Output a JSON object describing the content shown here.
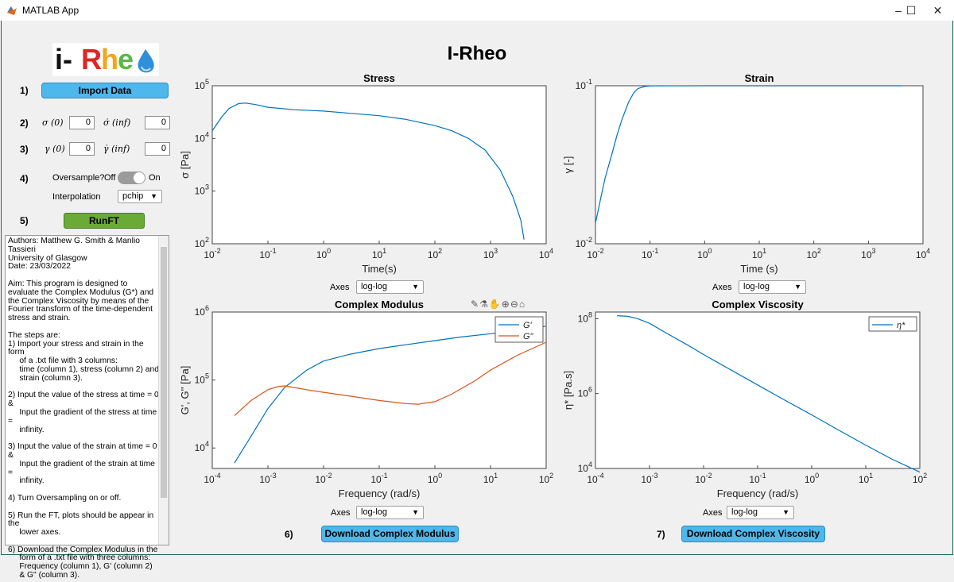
{
  "window": {
    "title": "MATLAB App",
    "controls": {
      "minimize": "–",
      "maximize": "☐",
      "close": "✕"
    }
  },
  "app": {
    "title": "I-Rheo",
    "logo_text": "i-Rheo"
  },
  "steps": {
    "s1": "1)",
    "s2": "2)",
    "s3": "3)",
    "s4": "4)",
    "s5": "5)",
    "s6": "6)",
    "s7": "7)"
  },
  "controls": {
    "import_label": "Import Data",
    "sigma0_label": "σ (0)",
    "sigma0_value": "0",
    "sigmadot_label": "σ̇ (inf)",
    "sigmadot_value": "0",
    "gamma0_label": "γ (0)",
    "gamma0_value": "0",
    "gammadot_label": "γ̇ (inf)",
    "gammadot_value": "0",
    "oversample_label": "Oversample?",
    "off_label": "Off",
    "on_label": "On",
    "interp_label": "Interpolation",
    "interp_value": "pchip",
    "runft_label": "RunFT",
    "download_modulus_label": "Download Complex Modulus",
    "download_viscosity_label": "Download Complex Viscosity",
    "axes_label": "Axes",
    "axes_options": [
      "log-log",
      "log-log",
      "log-log",
      "log-log"
    ]
  },
  "about_text": "Authors: Matthew G. Smith & Manlio Tassieri\nUniversity of Glasgow\nDate: 23/03/2022\n\nAim: This program is designed to evaluate the Complex Modulus (G*) and the Complex Viscosity by means of the Fourier transform of the time-dependent stress and strain.\n\nThe steps are:\n1) Import your stress and strain in the form\n     of a .txt file with 3 columns:\n     time (column 1), stress (column 2) and\n     strain (column 3).\n\n2) Input the value of the stress at time = 0 &\n     Input the gradient of the stress at time =\n     infinity.\n\n3) Input the value of the strain at time = 0 &\n     Input the gradient of the strain at time =\n     infinity.\n\n4) Turn Oversampling on or off.\n\n5) Run the FT, plots should be appear in the\n     lower axes.\n\n6) Download the Complex Modulus in the\n     form of a .txt file with three columns:\n     Frequency (column 1), G' (column 2)\n     & G\" (column 3).",
  "chart_data": [
    {
      "type": "line",
      "title": "Stress",
      "xlabel": "Time(s)",
      "ylabel": "σ [Pa]",
      "xscale": "log",
      "yscale": "log",
      "xlim": [
        0.01,
        10000
      ],
      "ylim": [
        100,
        100000
      ],
      "xticks": [
        "10^-2",
        "10^-1",
        "10^0",
        "10^1",
        "10^2",
        "10^3",
        "10^4"
      ],
      "yticks": [
        "10^2",
        "10^3",
        "10^4",
        "10^5"
      ],
      "series": [
        {
          "name": "stress",
          "color": "#0072bd",
          "x": [
            0.01,
            0.015,
            0.02,
            0.03,
            0.04,
            0.06,
            0.1,
            0.3,
            1,
            3,
            10,
            30,
            100,
            200,
            400,
            800,
            1500,
            2500,
            3500,
            4000
          ],
          "y": [
            14000,
            26000,
            37000,
            46000,
            47000,
            44000,
            39000,
            35000,
            33000,
            30000,
            27000,
            23000,
            17500,
            14000,
            10000,
            6000,
            2500,
            800,
            280,
            120
          ]
        }
      ]
    },
    {
      "type": "line",
      "title": "Strain",
      "xlabel": "Time (s)",
      "ylabel": "γ [-]",
      "xscale": "log",
      "yscale": "log",
      "xlim": [
        0.01,
        10000
      ],
      "ylim": [
        0.01,
        0.1
      ],
      "xticks": [
        "10^-2",
        "10^-1",
        "10^0",
        "10^1",
        "10^2",
        "10^3",
        "10^4"
      ],
      "yticks": [
        "10^-2",
        "10^-1"
      ],
      "series": [
        {
          "name": "strain",
          "color": "#0072bd",
          "x": [
            0.01,
            0.0125,
            0.015,
            0.02,
            0.025,
            0.03,
            0.04,
            0.05,
            0.06,
            0.08,
            0.1,
            1,
            10,
            100,
            1000,
            4000
          ],
          "y": [
            0.0135,
            0.0195,
            0.026,
            0.037,
            0.049,
            0.06,
            0.078,
            0.09,
            0.096,
            0.099,
            0.0998,
            0.1,
            0.1,
            0.1,
            0.1,
            0.1
          ]
        }
      ]
    },
    {
      "type": "line",
      "title": "Complex Modulus",
      "xlabel": "Frequency (rad/s)",
      "ylabel": "G', G'' [Pa]",
      "xscale": "log",
      "yscale": "log",
      "xlim": [
        0.0001,
        100
      ],
      "ylim": [
        5000,
        1000000
      ],
      "xticks": [
        "10^-4",
        "10^-3",
        "10^-2",
        "10^-1",
        "10^0",
        "10^1",
        "10^2"
      ],
      "yticks": [
        "10^4",
        "10^5",
        "10^6"
      ],
      "legend": "top-right",
      "series": [
        {
          "name": "G'",
          "color": "#0072bd",
          "x": [
            0.00025,
            0.0005,
            0.001,
            0.002,
            0.005,
            0.01,
            0.03,
            0.1,
            0.3,
            1,
            3,
            10,
            30,
            100
          ],
          "y": [
            6000,
            15000,
            38000,
            78000,
            140000,
            190000,
            240000,
            290000,
            330000,
            380000,
            430000,
            480000,
            530000,
            620000
          ]
        },
        {
          "name": "G\"",
          "color": "#d95319",
          "x": [
            0.00025,
            0.0005,
            0.001,
            0.0015,
            0.002,
            0.005,
            0.01,
            0.03,
            0.1,
            0.3,
            0.5,
            1,
            2,
            5,
            10,
            30,
            100
          ],
          "y": [
            30000,
            50000,
            72000,
            80000,
            82000,
            72000,
            66000,
            58000,
            50000,
            45000,
            44000,
            48000,
            62000,
            95000,
            140000,
            230000,
            360000
          ]
        }
      ]
    },
    {
      "type": "line",
      "title": "Complex Viscosity",
      "xlabel": "Frequency (rad/s)",
      "ylabel": "η* [Pa.s]",
      "xscale": "log",
      "yscale": "log",
      "xlim": [
        0.0001,
        100
      ],
      "ylim": [
        10000,
        150000000
      ],
      "xticks": [
        "10^-4",
        "10^-3",
        "10^-2",
        "10^-1",
        "10^0",
        "10^1",
        "10^2"
      ],
      "yticks": [
        "10^4",
        "10^6",
        "10^8"
      ],
      "legend": "top-right",
      "series": [
        {
          "name": "η*",
          "color": "#0072bd",
          "x": [
            0.00025,
            0.0004,
            0.0006,
            0.001,
            0.002,
            0.005,
            0.01,
            0.03,
            0.1,
            0.3,
            1,
            3,
            10,
            30,
            100
          ],
          "y": [
            120000000,
            115000000,
            100000000,
            75000000,
            42000000,
            20000000,
            11000000,
            4500000,
            1700000,
            700000,
            270000,
            110000,
            42000,
            18000,
            8000
          ]
        }
      ]
    }
  ]
}
